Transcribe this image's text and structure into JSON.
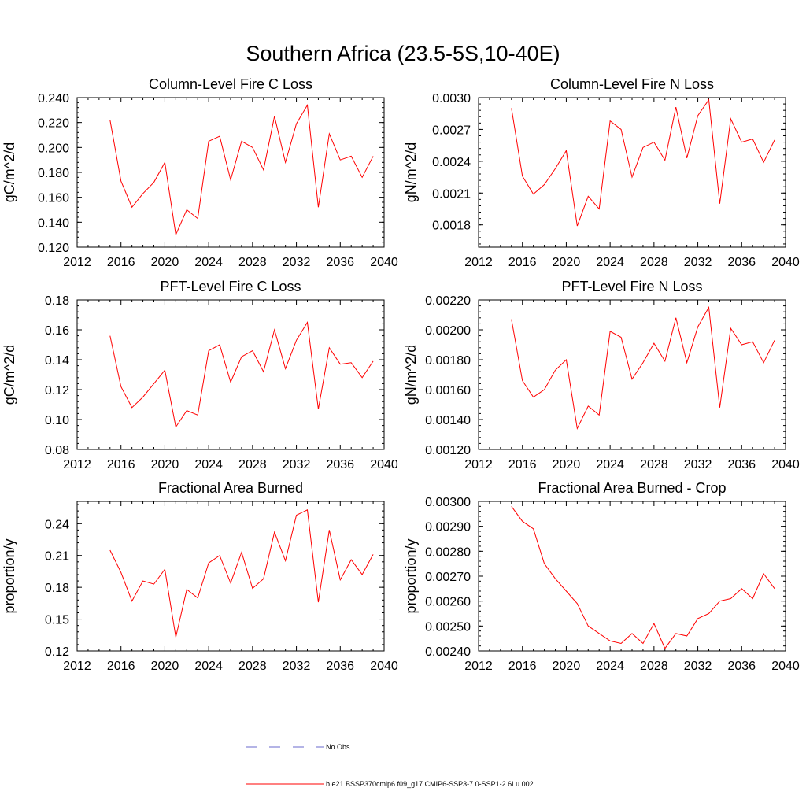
{
  "figure": {
    "title": "Southern Africa (23.5-5S,10-40E)",
    "series_color": "#ff0000",
    "obs_color": "#6a6acd"
  },
  "legend": {
    "obs_label": "No Obs",
    "model_label": "b.e21.BSSP370cmip6.f09_g17.CMIP6-SSP3-7.0-SSP1-2.6Lu.002"
  },
  "chart_data": [
    {
      "type": "line",
      "title": "Column-Level Fire C Loss",
      "xlabel": "",
      "ylabel": "gC/m^2/d",
      "xlim": [
        2012,
        2040
      ],
      "ylim": [
        0.12,
        0.24
      ],
      "xticks": [
        "2012",
        "2016",
        "2020",
        "2024",
        "2028",
        "2032",
        "2036",
        "2040"
      ],
      "yticks": [
        "0.120",
        "0.140",
        "0.160",
        "0.180",
        "0.200",
        "0.220",
        "0.240"
      ],
      "x": [
        2015,
        2016,
        2017,
        2018,
        2019,
        2020,
        2021,
        2022,
        2023,
        2024,
        2025,
        2026,
        2027,
        2028,
        2029,
        2030,
        2031,
        2032,
        2033,
        2034,
        2035,
        2036,
        2037,
        2038,
        2039
      ],
      "series": [
        {
          "values": [
            0.222,
            0.173,
            0.152,
            0.163,
            0.172,
            0.188,
            0.13,
            0.15,
            0.143,
            0.205,
            0.209,
            0.174,
            0.205,
            0.2,
            0.182,
            0.225,
            0.188,
            0.219,
            0.234,
            0.152,
            0.211,
            0.19,
            0.193,
            0.176,
            0.193
          ]
        }
      ]
    },
    {
      "type": "line",
      "title": "Column-Level Fire N Loss",
      "xlabel": "",
      "ylabel": "gN/m^2/d",
      "xlim": [
        2012,
        2040
      ],
      "ylim": [
        0.00159,
        0.003
      ],
      "xticks": [
        "2012",
        "2016",
        "2020",
        "2024",
        "2028",
        "2032",
        "2036",
        "2040"
      ],
      "yticks": [
        "0.0018",
        "0.0021",
        "0.0024",
        "0.0027",
        "0.0030"
      ],
      "ytick_values": [
        0.0018,
        0.0021,
        0.0024,
        0.0027,
        0.003
      ],
      "x": [
        2015,
        2016,
        2017,
        2018,
        2019,
        2020,
        2021,
        2022,
        2023,
        2024,
        2025,
        2026,
        2027,
        2028,
        2029,
        2030,
        2031,
        2032,
        2033,
        2034,
        2035,
        2036,
        2037,
        2038,
        2039
      ],
      "series": [
        {
          "values": [
            0.0029,
            0.00226,
            0.00209,
            0.00218,
            0.00233,
            0.0025,
            0.00179,
            0.00207,
            0.00195,
            0.00278,
            0.0027,
            0.00225,
            0.00253,
            0.00258,
            0.00241,
            0.00291,
            0.00243,
            0.00283,
            0.00298,
            0.002,
            0.0028,
            0.00258,
            0.00261,
            0.00239,
            0.0026
          ]
        }
      ]
    },
    {
      "type": "line",
      "title": "PFT-Level Fire C Loss",
      "xlabel": "",
      "ylabel": "gC/m^2/d",
      "xlim": [
        2012,
        2040
      ],
      "ylim": [
        0.08,
        0.18
      ],
      "xticks": [
        "2012",
        "2016",
        "2020",
        "2024",
        "2028",
        "2032",
        "2036",
        "2040"
      ],
      "yticks": [
        "0.08",
        "0.10",
        "0.12",
        "0.14",
        "0.16",
        "0.18"
      ],
      "x": [
        2015,
        2016,
        2017,
        2018,
        2019,
        2020,
        2021,
        2022,
        2023,
        2024,
        2025,
        2026,
        2027,
        2028,
        2029,
        2030,
        2031,
        2032,
        2033,
        2034,
        2035,
        2036,
        2037,
        2038,
        2039
      ],
      "series": [
        {
          "values": [
            0.156,
            0.122,
            0.108,
            0.115,
            0.124,
            0.133,
            0.095,
            0.106,
            0.103,
            0.146,
            0.15,
            0.125,
            0.142,
            0.146,
            0.132,
            0.16,
            0.134,
            0.153,
            0.165,
            0.107,
            0.148,
            0.137,
            0.138,
            0.128,
            0.139
          ]
        }
      ]
    },
    {
      "type": "line",
      "title": "PFT-Level Fire N Loss",
      "xlabel": "",
      "ylabel": "gN/m^2/d",
      "xlim": [
        2012,
        2040
      ],
      "ylim": [
        0.0012,
        0.0022
      ],
      "xticks": [
        "2012",
        "2016",
        "2020",
        "2024",
        "2028",
        "2032",
        "2036",
        "2040"
      ],
      "yticks": [
        "0.00120",
        "0.00140",
        "0.00160",
        "0.00180",
        "0.00200",
        "0.00220"
      ],
      "x": [
        2015,
        2016,
        2017,
        2018,
        2019,
        2020,
        2021,
        2022,
        2023,
        2024,
        2025,
        2026,
        2027,
        2028,
        2029,
        2030,
        2031,
        2032,
        2033,
        2034,
        2035,
        2036,
        2037,
        2038,
        2039
      ],
      "series": [
        {
          "values": [
            0.00207,
            0.00166,
            0.00155,
            0.0016,
            0.00173,
            0.0018,
            0.00134,
            0.00149,
            0.00143,
            0.00199,
            0.00195,
            0.00167,
            0.00178,
            0.00191,
            0.00179,
            0.00208,
            0.00178,
            0.00202,
            0.00215,
            0.00148,
            0.00201,
            0.0019,
            0.00192,
            0.00178,
            0.00193
          ]
        }
      ]
    },
    {
      "type": "line",
      "title": "Fractional Area Burned",
      "xlabel": "",
      "ylabel": "proportion/y",
      "xlim": [
        2012,
        2040
      ],
      "ylim": [
        0.12,
        0.261
      ],
      "xticks": [
        "2012",
        "2016",
        "2020",
        "2024",
        "2028",
        "2032",
        "2036",
        "2040"
      ],
      "yticks": [
        "0.12",
        "0.15",
        "0.18",
        "0.21",
        "0.24"
      ],
      "ytick_values": [
        0.12,
        0.15,
        0.18,
        0.21,
        0.24
      ],
      "x": [
        2015,
        2016,
        2017,
        2018,
        2019,
        2020,
        2021,
        2022,
        2023,
        2024,
        2025,
        2026,
        2027,
        2028,
        2029,
        2030,
        2031,
        2032,
        2033,
        2034,
        2035,
        2036,
        2037,
        2038,
        2039
      ],
      "series": [
        {
          "values": [
            0.215,
            0.194,
            0.167,
            0.186,
            0.183,
            0.197,
            0.133,
            0.178,
            0.17,
            0.203,
            0.21,
            0.184,
            0.213,
            0.179,
            0.188,
            0.232,
            0.205,
            0.248,
            0.253,
            0.166,
            0.234,
            0.187,
            0.206,
            0.192,
            0.211
          ]
        }
      ]
    },
    {
      "type": "line",
      "title": "Fractional Area Burned - Crop",
      "xlabel": "",
      "ylabel": "proportion/y",
      "xlim": [
        2012,
        2040
      ],
      "ylim": [
        0.0024,
        0.003
      ],
      "xticks": [
        "2012",
        "2016",
        "2020",
        "2024",
        "2028",
        "2032",
        "2036",
        "2040"
      ],
      "yticks": [
        "0.00240",
        "0.00250",
        "0.00260",
        "0.00270",
        "0.00280",
        "0.00290",
        "0.00300"
      ],
      "x": [
        2015,
        2016,
        2017,
        2018,
        2019,
        2020,
        2021,
        2022,
        2023,
        2024,
        2025,
        2026,
        2027,
        2028,
        2029,
        2030,
        2031,
        2032,
        2033,
        2034,
        2035,
        2036,
        2037,
        2038,
        2039
      ],
      "series": [
        {
          "values": [
            0.00298,
            0.00292,
            0.00289,
            0.00275,
            0.00269,
            0.00264,
            0.00259,
            0.0025,
            0.00247,
            0.00244,
            0.00243,
            0.00247,
            0.00243,
            0.00251,
            0.00241,
            0.00247,
            0.00246,
            0.00253,
            0.00255,
            0.0026,
            0.00261,
            0.00265,
            0.00261,
            0.00271,
            0.00265
          ]
        }
      ]
    }
  ]
}
